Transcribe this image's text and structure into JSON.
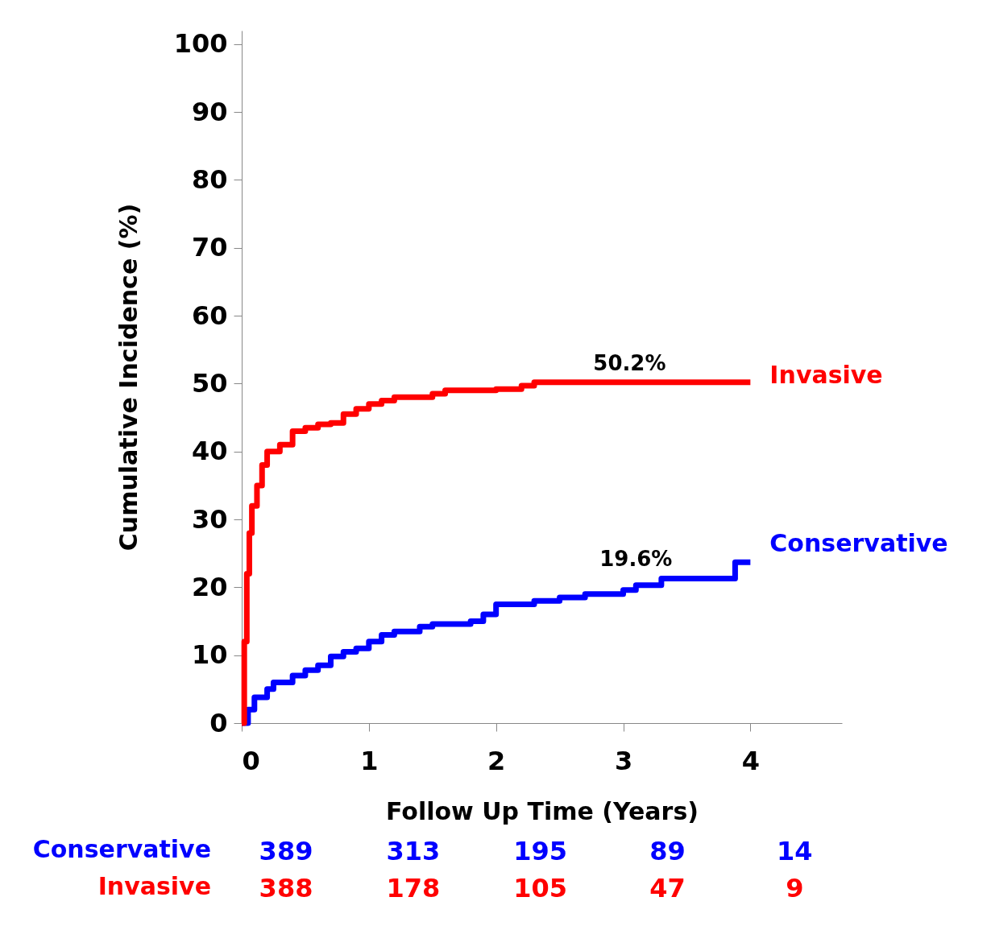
{
  "chart_data": {
    "type": "step",
    "xlabel": "Follow Up Time (Years)",
    "ylabel": "Cumulative Incidence (%)",
    "xlim": [
      0,
      4.72
    ],
    "ylim": [
      0,
      102
    ],
    "xticks": [
      0,
      1,
      2,
      3,
      4
    ],
    "yticks": [
      0,
      10,
      20,
      30,
      40,
      50,
      60,
      70,
      80,
      90,
      100
    ],
    "grid": false,
    "legend": false,
    "line_style": "solid",
    "marker": "none",
    "series": [
      {
        "name": "Conservative",
        "color": "#0000ff",
        "x": [
          0,
          0.05,
          0.1,
          0.2,
          0.25,
          0.4,
          0.5,
          0.6,
          0.7,
          0.8,
          0.9,
          1.0,
          1.1,
          1.2,
          1.4,
          1.5,
          1.8,
          1.9,
          2.0,
          2.3,
          2.5,
          2.7,
          3.0,
          3.1,
          3.3,
          3.88,
          4.0
        ],
        "values": [
          0,
          2,
          3.8,
          5,
          6,
          7,
          7.8,
          8.5,
          9.8,
          10.5,
          11,
          12,
          13,
          13.5,
          14.2,
          14.6,
          15,
          16,
          17.5,
          18,
          18.5,
          19,
          19.6,
          20.3,
          21.3,
          23.7,
          23.7
        ]
      },
      {
        "name": "Invasive",
        "color": "#ff0000",
        "x": [
          0,
          0.02,
          0.04,
          0.06,
          0.08,
          0.12,
          0.16,
          0.2,
          0.3,
          0.4,
          0.5,
          0.6,
          0.7,
          0.8,
          0.9,
          1.0,
          1.1,
          1.2,
          1.5,
          1.6,
          2.0,
          2.2,
          2.3,
          4.0
        ],
        "values": [
          0,
          12,
          22,
          28,
          32,
          35,
          38,
          40,
          41,
          43,
          43.5,
          44,
          44.2,
          45.5,
          46.3,
          47,
          47.5,
          48,
          48.5,
          49,
          49.2,
          49.7,
          50.2,
          50.2
        ]
      }
    ],
    "annotations": [
      {
        "text": "50.2%",
        "x": 3.05,
        "y": 50.2
      },
      {
        "text": "19.6%",
        "x": 3.1,
        "y": 21.3
      },
      "Conservative",
      "389",
      "313",
      "195",
      "89",
      "14",
      "Invasive",
      "388",
      "178",
      "105",
      "47",
      "9"
    ]
  }
}
